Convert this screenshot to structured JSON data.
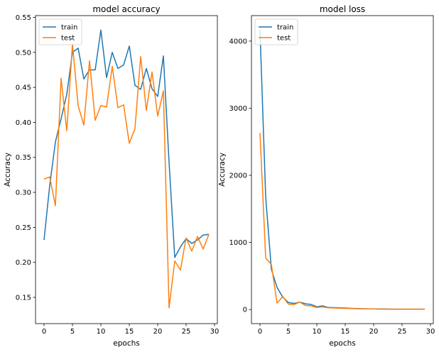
{
  "chart_data": [
    {
      "type": "line",
      "title": "model accuracy",
      "xlabel": "epochs",
      "ylabel": "Accuracy",
      "xlim": [
        -1.5,
        30.5
      ],
      "ylim": [
        0.1125,
        0.5525
      ],
      "xticks": [
        0,
        5,
        10,
        15,
        20,
        25,
        30
      ],
      "xtick_labels": [
        "0",
        "5",
        "10",
        "15",
        "20",
        "25",
        "30"
      ],
      "yticks": [
        0.15,
        0.2,
        0.25,
        0.3,
        0.35,
        0.4,
        0.45,
        0.5,
        0.55
      ],
      "ytick_labels": [
        "0.15",
        "0.20",
        "0.25",
        "0.30",
        "0.35",
        "0.40",
        "0.45",
        "0.50",
        "0.55"
      ],
      "legend_position": "top-left",
      "grid": false,
      "x": [
        0,
        1,
        2,
        3,
        4,
        5,
        6,
        7,
        8,
        9,
        10,
        11,
        12,
        13,
        14,
        15,
        16,
        17,
        18,
        19,
        20,
        21,
        22,
        23,
        24,
        25,
        26,
        27,
        28,
        29
      ],
      "series": [
        {
          "name": "train",
          "color": "#1f77b4",
          "values": [
            0.232,
            0.31,
            0.372,
            0.405,
            0.44,
            0.5,
            0.506,
            0.462,
            0.475,
            0.475,
            0.532,
            0.464,
            0.5,
            0.477,
            0.482,
            0.509,
            0.453,
            0.447,
            0.477,
            0.448,
            0.437,
            0.495,
            0.343,
            0.207,
            0.222,
            0.234,
            0.227,
            0.232,
            0.239,
            0.24
          ]
        },
        {
          "name": "test",
          "color": "#ff7f0e",
          "values": [
            0.319,
            0.322,
            0.281,
            0.463,
            0.388,
            0.512,
            0.424,
            0.396,
            0.488,
            0.403,
            0.424,
            0.422,
            0.48,
            0.421,
            0.425,
            0.37,
            0.391,
            0.494,
            0.417,
            0.472,
            0.409,
            0.445,
            0.135,
            0.202,
            0.189,
            0.235,
            0.216,
            0.237,
            0.219,
            0.24
          ]
        }
      ]
    },
    {
      "type": "line",
      "title": "model loss",
      "xlabel": "epochs",
      "ylabel": "Accuracy",
      "xlim": [
        -1.5,
        30.5
      ],
      "ylim": [
        -210,
        4380
      ],
      "xticks": [
        0,
        5,
        10,
        15,
        20,
        25,
        30
      ],
      "xtick_labels": [
        "0",
        "5",
        "10",
        "15",
        "20",
        "25",
        "30"
      ],
      "yticks": [
        0,
        1000,
        2000,
        3000,
        4000
      ],
      "ytick_labels": [
        "0",
        "1000",
        "2000",
        "3000",
        "4000"
      ],
      "legend_position": "top-left",
      "grid": false,
      "x": [
        0,
        1,
        2,
        3,
        4,
        5,
        6,
        7,
        8,
        9,
        10,
        11,
        12,
        13,
        14,
        15,
        16,
        17,
        18,
        19,
        20,
        21,
        22,
        23,
        24,
        25,
        26,
        27,
        28,
        29
      ],
      "series": [
        {
          "name": "train",
          "color": "#1f77b4",
          "values": [
            4170,
            1680,
            600,
            330,
            185,
            105,
            90,
            110,
            85,
            75,
            40,
            55,
            30,
            28,
            25,
            22,
            18,
            15,
            12,
            10,
            10,
            8,
            8,
            5,
            5,
            5,
            5,
            5,
            5,
            5
          ]
        },
        {
          "name": "test",
          "color": "#ff7f0e",
          "values": [
            2630,
            770,
            670,
            95,
            195,
            80,
            75,
            110,
            60,
            55,
            30,
            40,
            25,
            22,
            20,
            18,
            15,
            12,
            10,
            8,
            10,
            6,
            5,
            5,
            5,
            5,
            5,
            5,
            5,
            5
          ]
        }
      ]
    }
  ]
}
